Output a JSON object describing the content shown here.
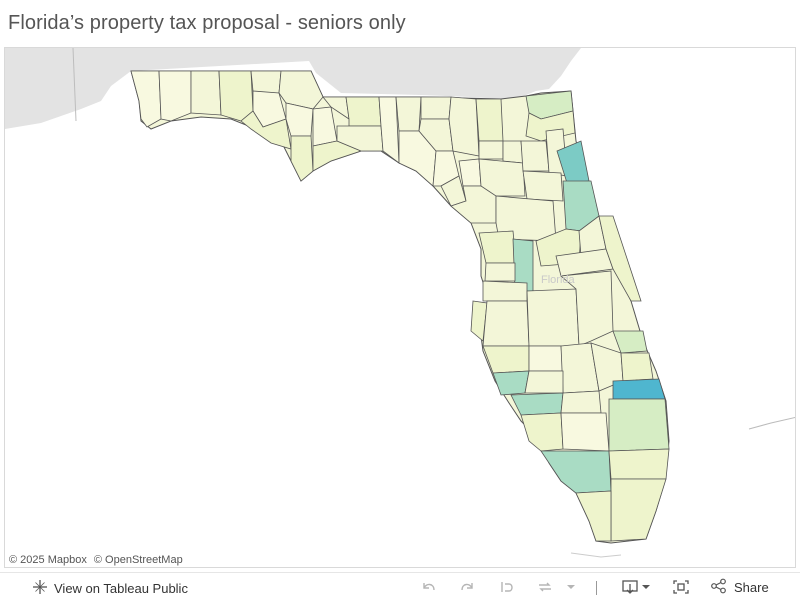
{
  "title": "Florida’s property tax proposal - seniors only",
  "map": {
    "state_label": "Florida",
    "attribution": [
      "© 2025 Mapbox",
      "© OpenStreetMap"
    ],
    "colors": {
      "land_outside": "#e3e3e3",
      "water": "#ffffff",
      "county_border": "#555555",
      "scale_lightest": "#f8f9e0",
      "scale_light": "#eef4cc",
      "scale_mid": "#d6edc4",
      "scale_medium": "#a9dcc4",
      "scale_high": "#7ccbc5",
      "scale_highest": "#4fb6cf"
    }
  },
  "footer": {
    "view_label": "View on Tableau Public",
    "share_label": "Share",
    "icons": [
      "tableau-logo-icon",
      "undo-icon",
      "redo-icon",
      "revert-icon",
      "refresh-icon",
      "dropdown-icon",
      "download-icon",
      "fullscreen-icon",
      "share-icon"
    ]
  }
}
